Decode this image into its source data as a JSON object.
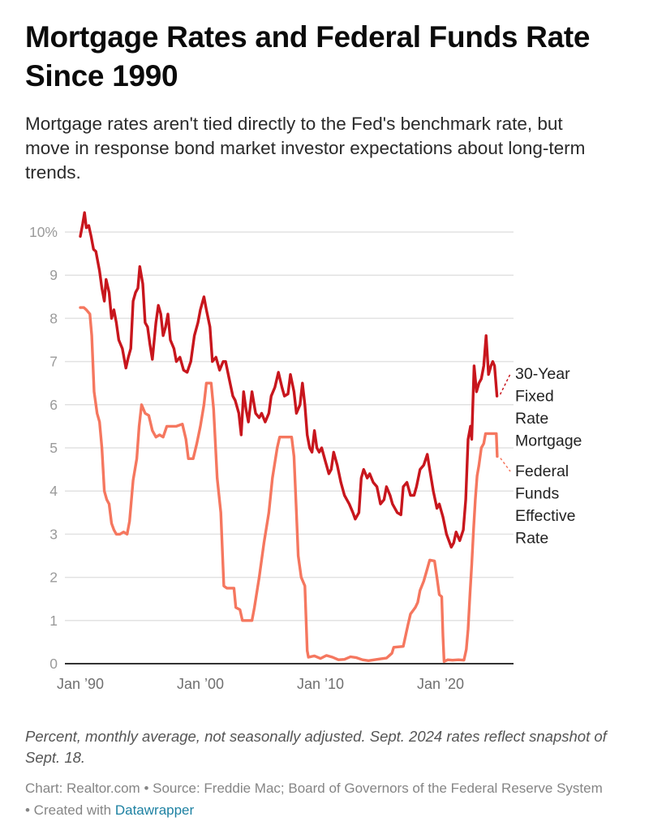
{
  "header": {
    "title": "Mortgage Rates and Federal Funds Rate Since 1990",
    "subtitle": "Mortgage rates aren't tied directly to the Fed's benchmark rate, but move in response bond market investor expectations about long-term trends."
  },
  "footer": {
    "notes": "Percent, monthly average, not seasonally adjusted. Sept. 2024 rates reflect snapshot of Sept. 18.",
    "credits_prefix": "Chart: Realtor.com • Source: Freddie Mac; Board of Governors of the Federal Reserve System • Created with ",
    "credits_link": "Datawrapper"
  },
  "chart_data": {
    "type": "line",
    "title": "Mortgage Rates and Federal Funds Rate Since 1990",
    "xlabel": "",
    "ylabel": "Percent",
    "xlim": [
      1990,
      2025.2
    ],
    "ylim": [
      0,
      10
    ],
    "grid": true,
    "y_ticks": [
      0,
      1,
      2,
      3,
      4,
      5,
      6,
      7,
      8,
      9,
      10
    ],
    "y_tick_labels": [
      "0",
      "1",
      "2",
      "3",
      "4",
      "5",
      "6",
      "7",
      "8",
      "9",
      "10%"
    ],
    "x_ticks": [
      1990,
      2000,
      2010,
      2020
    ],
    "x_tick_labels": [
      "Jan ’90",
      "Jan ’00",
      "Jan ’10",
      "Jan ’20"
    ],
    "legend_placement": "right (direct labels)",
    "series": [
      {
        "name": "30-Year Fixed Rate Mortgage",
        "label_lines": [
          "30-Year",
          "Fixed",
          "Rate",
          "Mortgage"
        ],
        "color": "#c8161d",
        "points": [
          [
            1990.0,
            9.9
          ],
          [
            1990.2,
            10.2
          ],
          [
            1990.35,
            10.45
          ],
          [
            1990.5,
            10.1
          ],
          [
            1990.7,
            10.15
          ],
          [
            1990.9,
            9.9
          ],
          [
            1991.1,
            9.6
          ],
          [
            1991.3,
            9.55
          ],
          [
            1991.6,
            9.1
          ],
          [
            1991.8,
            8.7
          ],
          [
            1992.0,
            8.4
          ],
          [
            1992.15,
            8.9
          ],
          [
            1992.4,
            8.6
          ],
          [
            1992.6,
            8.0
          ],
          [
            1992.8,
            8.2
          ],
          [
            1993.0,
            7.9
          ],
          [
            1993.2,
            7.5
          ],
          [
            1993.5,
            7.3
          ],
          [
            1993.8,
            6.85
          ],
          [
            1994.0,
            7.1
          ],
          [
            1994.2,
            7.3
          ],
          [
            1994.4,
            8.4
          ],
          [
            1994.6,
            8.6
          ],
          [
            1994.8,
            8.7
          ],
          [
            1994.95,
            9.2
          ],
          [
            1995.2,
            8.8
          ],
          [
            1995.4,
            7.9
          ],
          [
            1995.6,
            7.8
          ],
          [
            1995.8,
            7.4
          ],
          [
            1996.0,
            7.05
          ],
          [
            1996.3,
            7.9
          ],
          [
            1996.5,
            8.3
          ],
          [
            1996.7,
            8.1
          ],
          [
            1996.9,
            7.6
          ],
          [
            1997.1,
            7.8
          ],
          [
            1997.3,
            8.1
          ],
          [
            1997.5,
            7.5
          ],
          [
            1997.8,
            7.3
          ],
          [
            1998.0,
            7.0
          ],
          [
            1998.3,
            7.1
          ],
          [
            1998.6,
            6.8
          ],
          [
            1998.9,
            6.75
          ],
          [
            1999.2,
            7.0
          ],
          [
            1999.5,
            7.6
          ],
          [
            1999.8,
            7.9
          ],
          [
            2000.0,
            8.2
          ],
          [
            2000.3,
            8.5
          ],
          [
            2000.5,
            8.2
          ],
          [
            2000.8,
            7.8
          ],
          [
            2001.0,
            7.0
          ],
          [
            2001.3,
            7.1
          ],
          [
            2001.6,
            6.8
          ],
          [
            2001.9,
            7.0
          ],
          [
            2002.1,
            7.0
          ],
          [
            2002.4,
            6.6
          ],
          [
            2002.7,
            6.2
          ],
          [
            2002.9,
            6.1
          ],
          [
            2003.2,
            5.8
          ],
          [
            2003.4,
            5.3
          ],
          [
            2003.6,
            6.3
          ],
          [
            2003.8,
            5.9
          ],
          [
            2004.0,
            5.6
          ],
          [
            2004.3,
            6.3
          ],
          [
            2004.6,
            5.8
          ],
          [
            2004.9,
            5.7
          ],
          [
            2005.1,
            5.8
          ],
          [
            2005.4,
            5.6
          ],
          [
            2005.7,
            5.8
          ],
          [
            2005.9,
            6.2
          ],
          [
            2006.2,
            6.4
          ],
          [
            2006.5,
            6.75
          ],
          [
            2006.8,
            6.4
          ],
          [
            2007.0,
            6.2
          ],
          [
            2007.3,
            6.25
          ],
          [
            2007.5,
            6.7
          ],
          [
            2007.8,
            6.3
          ],
          [
            2008.0,
            5.8
          ],
          [
            2008.3,
            6.0
          ],
          [
            2008.5,
            6.5
          ],
          [
            2008.7,
            6.0
          ],
          [
            2008.9,
            5.3
          ],
          [
            2009.1,
            5.0
          ],
          [
            2009.3,
            4.9
          ],
          [
            2009.5,
            5.4
          ],
          [
            2009.7,
            5.0
          ],
          [
            2009.9,
            4.9
          ],
          [
            2010.1,
            5.0
          ],
          [
            2010.4,
            4.7
          ],
          [
            2010.7,
            4.4
          ],
          [
            2010.9,
            4.5
          ],
          [
            2011.1,
            4.9
          ],
          [
            2011.4,
            4.6
          ],
          [
            2011.7,
            4.2
          ],
          [
            2012.0,
            3.9
          ],
          [
            2012.4,
            3.7
          ],
          [
            2012.7,
            3.5
          ],
          [
            2012.9,
            3.35
          ],
          [
            2013.2,
            3.5
          ],
          [
            2013.4,
            4.3
          ],
          [
            2013.6,
            4.5
          ],
          [
            2013.9,
            4.3
          ],
          [
            2014.1,
            4.4
          ],
          [
            2014.4,
            4.2
          ],
          [
            2014.7,
            4.1
          ],
          [
            2015.0,
            3.7
          ],
          [
            2015.3,
            3.8
          ],
          [
            2015.5,
            4.1
          ],
          [
            2015.8,
            3.9
          ],
          [
            2016.0,
            3.7
          ],
          [
            2016.4,
            3.5
          ],
          [
            2016.7,
            3.45
          ],
          [
            2016.9,
            4.1
          ],
          [
            2017.2,
            4.2
          ],
          [
            2017.5,
            3.9
          ],
          [
            2017.8,
            3.9
          ],
          [
            2018.0,
            4.1
          ],
          [
            2018.3,
            4.5
          ],
          [
            2018.6,
            4.6
          ],
          [
            2018.9,
            4.85
          ],
          [
            2019.1,
            4.5
          ],
          [
            2019.4,
            4.0
          ],
          [
            2019.7,
            3.6
          ],
          [
            2019.9,
            3.7
          ],
          [
            2020.2,
            3.4
          ],
          [
            2020.5,
            3.0
          ],
          [
            2020.9,
            2.7
          ],
          [
            2021.1,
            2.8
          ],
          [
            2021.3,
            3.05
          ],
          [
            2021.6,
            2.85
          ],
          [
            2021.9,
            3.1
          ],
          [
            2022.1,
            3.8
          ],
          [
            2022.3,
            5.2
          ],
          [
            2022.5,
            5.5
          ],
          [
            2022.6,
            5.2
          ],
          [
            2022.8,
            6.9
          ],
          [
            2023.0,
            6.3
          ],
          [
            2023.2,
            6.5
          ],
          [
            2023.4,
            6.6
          ],
          [
            2023.6,
            6.9
          ],
          [
            2023.8,
            7.6
          ],
          [
            2024.0,
            6.7
          ],
          [
            2024.2,
            6.9
          ],
          [
            2024.35,
            7.0
          ],
          [
            2024.5,
            6.9
          ],
          [
            2024.7,
            6.2
          ]
        ]
      },
      {
        "name": "Federal Funds Effective Rate",
        "label_lines": [
          "Federal",
          "Funds",
          "Effective",
          "Rate"
        ],
        "color": "#f5775f",
        "points": [
          [
            1990.0,
            8.25
          ],
          [
            1990.3,
            8.25
          ],
          [
            1990.5,
            8.2
          ],
          [
            1990.8,
            8.1
          ],
          [
            1990.95,
            7.6
          ],
          [
            1991.15,
            6.3
          ],
          [
            1991.4,
            5.8
          ],
          [
            1991.6,
            5.6
          ],
          [
            1991.8,
            5.0
          ],
          [
            1992.0,
            4.0
          ],
          [
            1992.2,
            3.8
          ],
          [
            1992.4,
            3.7
          ],
          [
            1992.6,
            3.25
          ],
          [
            1992.8,
            3.1
          ],
          [
            1993.0,
            3.0
          ],
          [
            1993.3,
            3.0
          ],
          [
            1993.6,
            3.05
          ],
          [
            1993.9,
            3.0
          ],
          [
            1994.1,
            3.3
          ],
          [
            1994.4,
            4.25
          ],
          [
            1994.7,
            4.75
          ],
          [
            1994.9,
            5.5
          ],
          [
            1995.1,
            6.0
          ],
          [
            1995.4,
            5.8
          ],
          [
            1995.7,
            5.75
          ],
          [
            1996.0,
            5.4
          ],
          [
            1996.3,
            5.25
          ],
          [
            1996.6,
            5.3
          ],
          [
            1996.9,
            5.25
          ],
          [
            1997.2,
            5.5
          ],
          [
            1997.6,
            5.5
          ],
          [
            1998.0,
            5.5
          ],
          [
            1998.5,
            5.55
          ],
          [
            1998.8,
            5.2
          ],
          [
            1999.0,
            4.75
          ],
          [
            1999.4,
            4.75
          ],
          [
            1999.7,
            5.1
          ],
          [
            2000.0,
            5.5
          ],
          [
            2000.3,
            6.0
          ],
          [
            2000.5,
            6.5
          ],
          [
            2000.9,
            6.5
          ],
          [
            2001.1,
            5.9
          ],
          [
            2001.4,
            4.3
          ],
          [
            2001.7,
            3.5
          ],
          [
            2001.95,
            1.8
          ],
          [
            2002.2,
            1.75
          ],
          [
            2002.8,
            1.75
          ],
          [
            2002.95,
            1.3
          ],
          [
            2003.3,
            1.25
          ],
          [
            2003.5,
            1.0
          ],
          [
            2004.3,
            1.0
          ],
          [
            2004.5,
            1.3
          ],
          [
            2004.9,
            2.0
          ],
          [
            2005.3,
            2.8
          ],
          [
            2005.7,
            3.5
          ],
          [
            2006.0,
            4.3
          ],
          [
            2006.4,
            5.0
          ],
          [
            2006.6,
            5.25
          ],
          [
            2007.6,
            5.25
          ],
          [
            2007.8,
            4.8
          ],
          [
            2008.0,
            3.5
          ],
          [
            2008.15,
            2.5
          ],
          [
            2008.4,
            2.0
          ],
          [
            2008.7,
            1.8
          ],
          [
            2008.9,
            0.3
          ],
          [
            2009.0,
            0.15
          ],
          [
            2009.5,
            0.18
          ],
          [
            2010.0,
            0.12
          ],
          [
            2010.5,
            0.19
          ],
          [
            2011.0,
            0.15
          ],
          [
            2011.5,
            0.09
          ],
          [
            2012.0,
            0.1
          ],
          [
            2012.5,
            0.16
          ],
          [
            2013.0,
            0.14
          ],
          [
            2013.5,
            0.09
          ],
          [
            2014.0,
            0.07
          ],
          [
            2014.5,
            0.09
          ],
          [
            2015.0,
            0.11
          ],
          [
            2015.5,
            0.13
          ],
          [
            2015.95,
            0.24
          ],
          [
            2016.1,
            0.38
          ],
          [
            2016.9,
            0.4
          ],
          [
            2017.1,
            0.66
          ],
          [
            2017.3,
            0.91
          ],
          [
            2017.5,
            1.15
          ],
          [
            2017.9,
            1.3
          ],
          [
            2018.1,
            1.42
          ],
          [
            2018.3,
            1.7
          ],
          [
            2018.6,
            1.91
          ],
          [
            2018.9,
            2.2
          ],
          [
            2019.1,
            2.4
          ],
          [
            2019.5,
            2.38
          ],
          [
            2019.7,
            2.0
          ],
          [
            2019.9,
            1.6
          ],
          [
            2020.1,
            1.55
          ],
          [
            2020.2,
            0.65
          ],
          [
            2020.3,
            0.05
          ],
          [
            2020.6,
            0.09
          ],
          [
            2021.0,
            0.08
          ],
          [
            2021.5,
            0.09
          ],
          [
            2021.95,
            0.08
          ],
          [
            2022.15,
            0.33
          ],
          [
            2022.3,
            0.8
          ],
          [
            2022.45,
            1.6
          ],
          [
            2022.6,
            2.3
          ],
          [
            2022.75,
            3.1
          ],
          [
            2022.9,
            3.8
          ],
          [
            2023.05,
            4.35
          ],
          [
            2023.2,
            4.6
          ],
          [
            2023.4,
            5.0
          ],
          [
            2023.6,
            5.1
          ],
          [
            2023.75,
            5.33
          ],
          [
            2024.65,
            5.33
          ],
          [
            2024.72,
            4.8
          ]
        ]
      }
    ],
    "annotations": [
      {
        "series": "30-Year Fixed Rate Mortgage",
        "style": "dashed connector to direct label"
      },
      {
        "series": "Federal Funds Effective Rate",
        "style": "dashed connector to direct label"
      }
    ]
  }
}
